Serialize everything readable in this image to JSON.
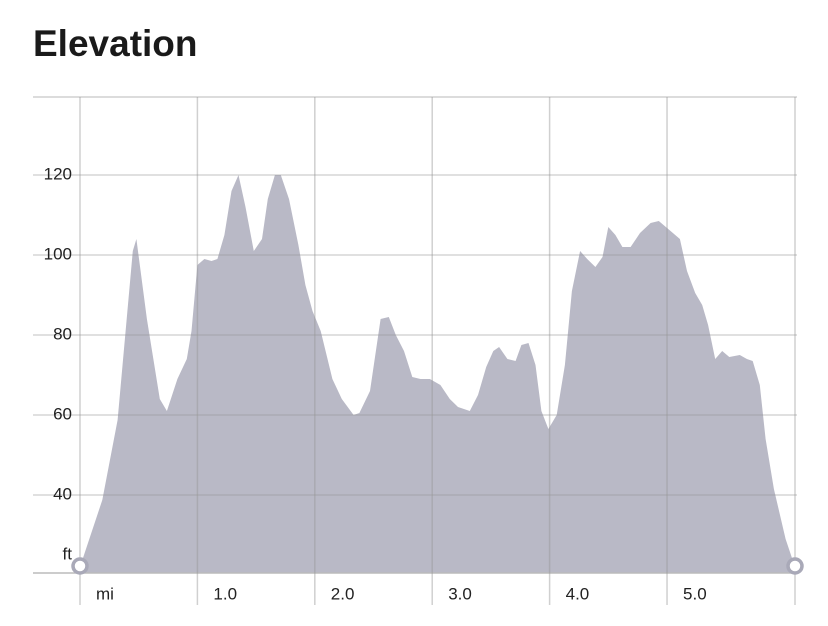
{
  "chart_data": {
    "type": "area",
    "title": "Elevation",
    "x": [
      0,
      0.19,
      0.32,
      0.45,
      0.48,
      0.57,
      0.68,
      0.74,
      0.83,
      0.91,
      0.95,
      1.0,
      1.06,
      1.12,
      1.17,
      1.23,
      1.29,
      1.35,
      1.41,
      1.48,
      1.55,
      1.6,
      1.66,
      1.71,
      1.78,
      1.86,
      1.92,
      1.98,
      2.05,
      2.15,
      2.23,
      2.33,
      2.38,
      2.47,
      2.56,
      2.63,
      2.69,
      2.76,
      2.83,
      2.9,
      2.98,
      3.07,
      3.15,
      3.22,
      3.32,
      3.39,
      3.46,
      3.52,
      3.57,
      3.64,
      3.71,
      3.76,
      3.82,
      3.88,
      3.93,
      3.99,
      4.06,
      4.13,
      4.19,
      4.26,
      4.32,
      4.39,
      4.45,
      4.5,
      4.56,
      4.62,
      4.69,
      4.77,
      4.86,
      4.93,
      5.01,
      5.11,
      5.17,
      5.24,
      5.3,
      5.35,
      5.41,
      5.47,
      5.53,
      5.62,
      5.68,
      5.73,
      5.79,
      5.84,
      5.91,
      6.01,
      6.09
    ],
    "values": [
      22,
      38.75,
      58.75,
      101,
      104,
      84,
      64,
      61,
      69,
      74,
      81,
      97.5,
      99,
      98.5,
      99,
      105,
      116,
      120,
      112,
      101,
      104,
      114,
      120,
      120,
      114,
      102.5,
      92.5,
      86,
      81,
      69,
      64,
      60,
      60.5,
      66,
      84,
      84.5,
      80,
      76,
      69.5,
      69,
      69,
      67.5,
      64,
      62,
      61,
      65,
      72,
      76,
      77,
      74,
      73.5,
      77.5,
      78,
      72.5,
      61,
      56.5,
      60,
      72.5,
      91,
      101,
      99,
      97,
      99.5,
      107,
      105,
      102,
      102,
      105.5,
      108,
      108.5,
      106.5,
      104,
      96,
      90.5,
      87.5,
      82.5,
      74,
      76,
      74.5,
      75,
      74,
      73.5,
      67.5,
      54,
      41.5,
      29,
      22
    ],
    "color": "#b9b9c6",
    "xlim": [
      0,
      6.09
    ],
    "ylim": [
      20.5,
      139.5
    ],
    "xticks": [
      {
        "value": 0,
        "label": "mi"
      },
      {
        "value": 1,
        "label": "1.0"
      },
      {
        "value": 2,
        "label": "2.0"
      },
      {
        "value": 3,
        "label": "3.0"
      },
      {
        "value": 4,
        "label": "4.0"
      },
      {
        "value": 5,
        "label": "5.0"
      }
    ],
    "yticks": [
      40,
      60,
      80,
      100,
      120
    ],
    "y_unit": "ft",
    "grid": true
  }
}
